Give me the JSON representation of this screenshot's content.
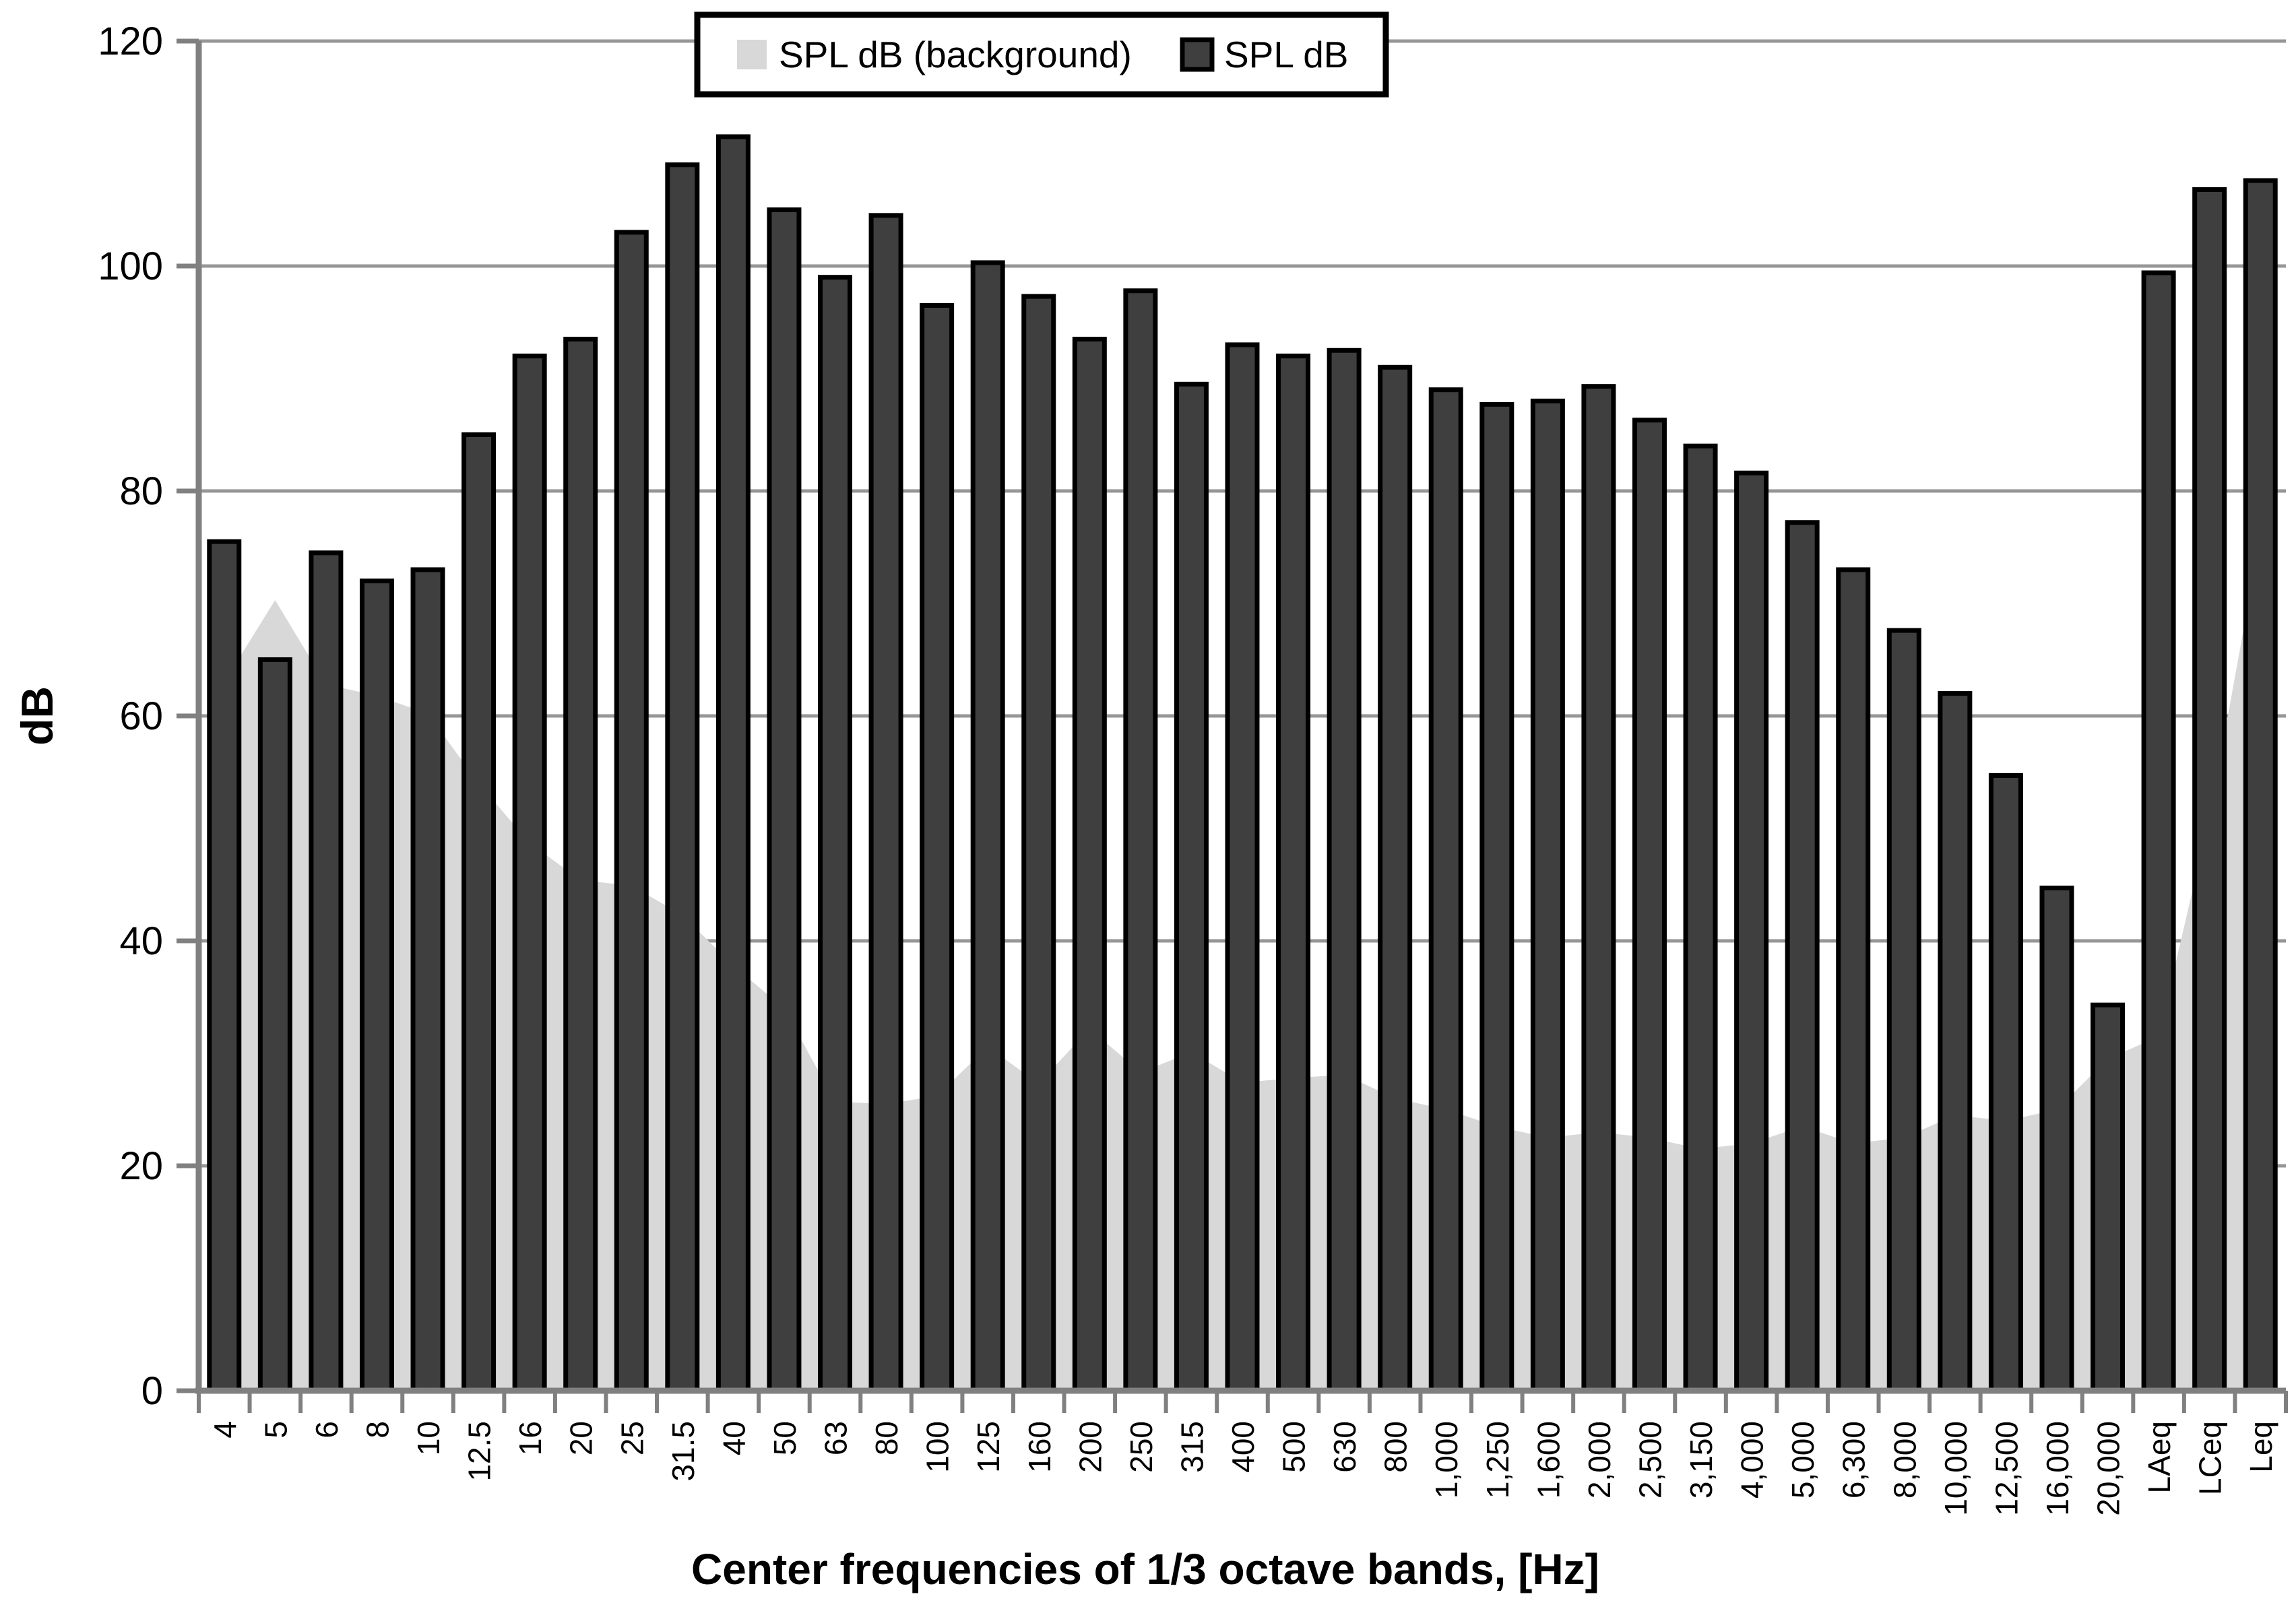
{
  "legend": {
    "position": "top-center",
    "items": [
      {
        "label": "SPL dB (background)",
        "swatch_color": "#d8d8d8",
        "swatch_border": "none"
      },
      {
        "label": "SPL dB",
        "swatch_color": "#3f3f3f",
        "swatch_border": "#000000"
      }
    ]
  },
  "axes": {
    "y": {
      "title": "dB",
      "min": 0,
      "max": 120,
      "tick_interval": 20,
      "tick_labels": [
        "0",
        "20",
        "40",
        "60",
        "80",
        "100",
        "120"
      ]
    },
    "x": {
      "title": "Center frequencies of 1/3 octave bands, [Hz]"
    }
  },
  "colors": {
    "bar_fill": "#3f3f3f",
    "bar_border": "#000000",
    "area_fill": "#d8d8d8",
    "gridline": "#969696",
    "axis_line": "#808080",
    "legend_border": "#000000",
    "background": "#ffffff"
  },
  "chart_data": {
    "type": "bar",
    "subtype": "combo-area-behind-bars",
    "title": "",
    "xlabel": "Center frequencies of 1/3 octave bands, [Hz]",
    "ylabel": "dB",
    "ylim": [
      0,
      120
    ],
    "grid": true,
    "legend_position": "top-center",
    "categories": [
      "4",
      "5",
      "6",
      "8",
      "10",
      "12.5",
      "16",
      "20",
      "25",
      "31.5",
      "40",
      "50",
      "63",
      "80",
      "100",
      "125",
      "160",
      "200",
      "250",
      "315",
      "400",
      "500",
      "630",
      "800",
      "1,000",
      "1,250",
      "1,600",
      "2,000",
      "2,500",
      "3,150",
      "4,000",
      "5,000",
      "6,300",
      "8,000",
      "10,000",
      "12,500",
      "16,000",
      "20,000",
      "LAeq",
      "LCeq",
      "Leq"
    ],
    "series": [
      {
        "name": "SPL dB (background)",
        "type": "area",
        "color": "#d8d8d8",
        "values": [
          63,
          70.3,
          62.8,
          61.8,
          60.2,
          54,
          48.7,
          45.4,
          44.9,
          42.3,
          37.8,
          34,
          25.7,
          25.5,
          26.2,
          30.6,
          27.3,
          32.2,
          28.3,
          30.1,
          27.4,
          27.8,
          28.1,
          26,
          25,
          23.5,
          22.5,
          23,
          22.5,
          21.5,
          22,
          23.5,
          22,
          22.5,
          24.5,
          24,
          25,
          29.5,
          31.5,
          51,
          76
        ]
      },
      {
        "name": "SPL dB",
        "type": "bar",
        "color": "#3f3f3f",
        "border_color": "#000000",
        "values": [
          75.5,
          65,
          74.5,
          72,
          73,
          85,
          92,
          93.5,
          103,
          109,
          111.5,
          105,
          99,
          104.5,
          96.5,
          100.3,
          97.3,
          93.5,
          97.8,
          89.5,
          93,
          92,
          92.5,
          91,
          89,
          87.7,
          88,
          89.3,
          86.3,
          84,
          81.6,
          77.2,
          73,
          67.6,
          62,
          54.7,
          44.7,
          34.3,
          99.4,
          106.8,
          107.6
        ]
      }
    ]
  }
}
